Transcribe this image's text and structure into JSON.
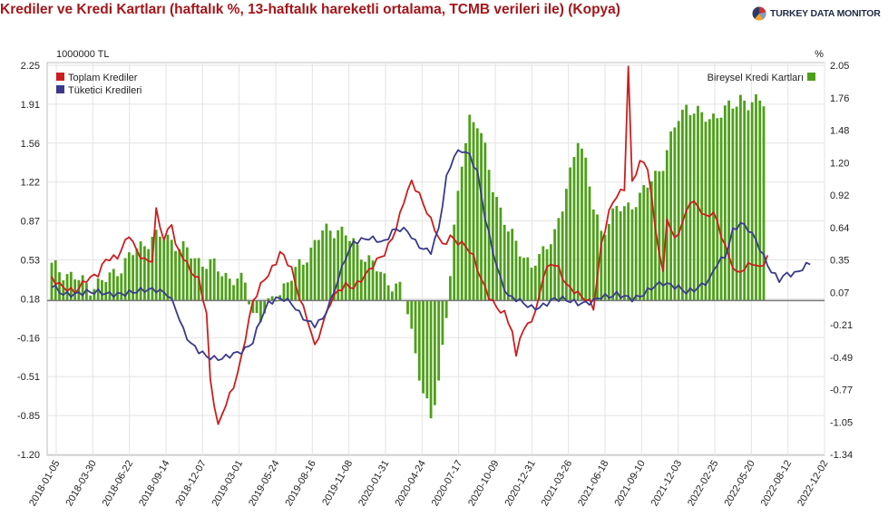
{
  "title": "Krediler ve Kredi Kartları (haftalık %, 13-haftalık hareketli ortalama, TCMB verileri ile) (Kopya)",
  "logo": {
    "text": "TURKEY DATA MONITOR",
    "icon": "pie-logo-icon"
  },
  "chart_data": {
    "type": "combo",
    "left_axis": {
      "unit": "1000000 TL",
      "ticks": [
        2.25,
        1.91,
        1.56,
        1.22,
        0.87,
        0.53,
        0.18,
        -0.16,
        -0.51,
        -0.85,
        -1.2
      ],
      "range": [
        -1.2,
        2.25
      ]
    },
    "right_axis": {
      "unit": "%",
      "ticks": [
        2.05,
        1.76,
        1.48,
        1.2,
        0.92,
        0.64,
        0.35,
        0.07,
        -0.21,
        -0.49,
        -0.77,
        -1.05,
        -1.34
      ],
      "range": [
        -1.34,
        2.05
      ]
    },
    "x_labels": [
      "2018-01-05",
      "2018-03-30",
      "2018-06-22",
      "2018-09-14",
      "2018-12-07",
      "2019-03-01",
      "2019-05-24",
      "2019-08-16",
      "2019-11-08",
      "2020-01-31",
      "2020-04-24",
      "2020-07-17",
      "2020-10-09",
      "2020-12-31",
      "2021-03-26",
      "2021-06-18",
      "2021-09-10",
      "2021-12-03",
      "2022-02-25",
      "2022-05-20",
      "2022-08-12",
      "2022-12-02"
    ],
    "grid": true,
    "zero_line_right_axis": 0,
    "legend_left": [
      {
        "name": "Toplam Krediler",
        "color": "#cc1e1e"
      },
      {
        "name": "Tüketici Kredileri",
        "color": "#3a3a8c"
      }
    ],
    "legend_right": [
      {
        "name": "Bireysel Kredi Kartları",
        "color": "#4ea019"
      }
    ],
    "series": [
      {
        "name": "Toplam Krediler",
        "axis": "left",
        "type": "line",
        "color": "#cc1e1e",
        "points": [
          [
            0,
            0.36
          ],
          [
            3,
            0.28
          ],
          [
            6,
            0.24
          ],
          [
            9,
            0.35
          ],
          [
            12,
            0.4
          ],
          [
            14,
            0.53
          ],
          [
            17,
            0.55
          ],
          [
            20,
            0.75
          ],
          [
            22,
            0.6
          ],
          [
            24,
            0.52
          ],
          [
            26,
            0.52
          ],
          [
            27,
            0.96
          ],
          [
            29,
            0.7
          ],
          [
            31,
            0.86
          ],
          [
            32,
            0.65
          ],
          [
            34,
            0.55
          ],
          [
            36,
            0.42
          ],
          [
            38,
            0.35
          ],
          [
            40,
            0.05
          ],
          [
            41,
            -0.55
          ],
          [
            42,
            -0.75
          ],
          [
            43,
            -0.95
          ],
          [
            45,
            -0.75
          ],
          [
            47,
            -0.6
          ],
          [
            49,
            -0.35
          ],
          [
            51,
            0.0
          ],
          [
            52,
            0.15
          ],
          [
            54,
            0.3
          ],
          [
            56,
            0.4
          ],
          [
            58,
            0.5
          ],
          [
            59,
            0.6
          ],
          [
            60,
            0.55
          ],
          [
            62,
            0.45
          ],
          [
            63,
            0.3
          ],
          [
            65,
            0.1
          ],
          [
            67,
            -0.1
          ],
          [
            68,
            -0.25
          ],
          [
            70,
            -0.05
          ],
          [
            72,
            0.15
          ],
          [
            74,
            0.25
          ],
          [
            76,
            0.3
          ],
          [
            78,
            0.28
          ],
          [
            80,
            0.35
          ],
          [
            82,
            0.43
          ],
          [
            84,
            0.52
          ],
          [
            86,
            0.58
          ],
          [
            87,
            0.65
          ],
          [
            89,
            0.8
          ],
          [
            91,
            1.05
          ],
          [
            93,
            1.22
          ],
          [
            95,
            1.1
          ],
          [
            97,
            0.95
          ],
          [
            99,
            0.8
          ],
          [
            101,
            0.65
          ],
          [
            103,
            0.73
          ],
          [
            105,
            0.68
          ],
          [
            107,
            0.65
          ],
          [
            109,
            0.55
          ],
          [
            111,
            0.35
          ],
          [
            113,
            0.2
          ],
          [
            115,
            0.1
          ],
          [
            117,
            0.05
          ],
          [
            119,
            -0.1
          ],
          [
            120,
            -0.35
          ],
          [
            121,
            -0.15
          ],
          [
            123,
            -0.05
          ],
          [
            125,
            0.05
          ],
          [
            127,
            0.38
          ],
          [
            129,
            0.5
          ],
          [
            131,
            0.45
          ],
          [
            133,
            0.3
          ],
          [
            135,
            0.25
          ],
          [
            137,
            0.2
          ],
          [
            139,
            0.15
          ],
          [
            140,
            0.1
          ],
          [
            142,
            0.65
          ],
          [
            144,
            0.95
          ],
          [
            146,
            1.1
          ],
          [
            148,
            1.15
          ],
          [
            149,
            2.25
          ],
          [
            150,
            1.2
          ],
          [
            152,
            1.4
          ],
          [
            154,
            1.35
          ],
          [
            156,
            0.8
          ],
          [
            158,
            0.4
          ],
          [
            159,
            0.9
          ],
          [
            161,
            0.7
          ],
          [
            163,
            0.85
          ],
          [
            165,
            1.05
          ],
          [
            167,
            1.0
          ],
          [
            169,
            0.9
          ],
          [
            171,
            0.95
          ],
          [
            173,
            0.75
          ],
          [
            175,
            0.55
          ],
          [
            177,
            0.4
          ],
          [
            179,
            0.45
          ],
          [
            181,
            0.5
          ],
          [
            183,
            0.45
          ],
          [
            185,
            0.55
          ]
        ]
      },
      {
        "name": "Tüketici Kredileri",
        "axis": "left",
        "type": "line",
        "color": "#3a3a8c",
        "points": [
          [
            0,
            0.3
          ],
          [
            3,
            0.22
          ],
          [
            6,
            0.22
          ],
          [
            9,
            0.24
          ],
          [
            12,
            0.24
          ],
          [
            15,
            0.22
          ],
          [
            18,
            0.22
          ],
          [
            21,
            0.24
          ],
          [
            24,
            0.26
          ],
          [
            27,
            0.26
          ],
          [
            30,
            0.22
          ],
          [
            32,
            0.1
          ],
          [
            34,
            -0.1
          ],
          [
            36,
            -0.22
          ],
          [
            38,
            -0.28
          ],
          [
            40,
            -0.33
          ],
          [
            42,
            -0.35
          ],
          [
            44,
            -0.35
          ],
          [
            46,
            -0.32
          ],
          [
            48,
            -0.3
          ],
          [
            50,
            -0.27
          ],
          [
            52,
            -0.2
          ],
          [
            54,
            0.0
          ],
          [
            56,
            0.14
          ],
          [
            58,
            0.18
          ],
          [
            60,
            0.18
          ],
          [
            62,
            0.14
          ],
          [
            64,
            0.05
          ],
          [
            66,
            -0.02
          ],
          [
            68,
            -0.05
          ],
          [
            70,
            0.0
          ],
          [
            72,
            0.15
          ],
          [
            74,
            0.35
          ],
          [
            76,
            0.55
          ],
          [
            78,
            0.68
          ],
          [
            80,
            0.7
          ],
          [
            82,
            0.72
          ],
          [
            84,
            0.7
          ],
          [
            86,
            0.68
          ],
          [
            88,
            0.78
          ],
          [
            90,
            0.8
          ],
          [
            92,
            0.78
          ],
          [
            94,
            0.68
          ],
          [
            96,
            0.62
          ],
          [
            98,
            0.6
          ],
          [
            100,
            0.8
          ],
          [
            102,
            1.25
          ],
          [
            104,
            1.45
          ],
          [
            106,
            1.5
          ],
          [
            108,
            1.45
          ],
          [
            110,
            1.3
          ],
          [
            112,
            0.9
          ],
          [
            114,
            0.6
          ],
          [
            116,
            0.35
          ],
          [
            118,
            0.2
          ],
          [
            120,
            0.18
          ],
          [
            122,
            0.14
          ],
          [
            124,
            0.1
          ],
          [
            126,
            0.1
          ],
          [
            128,
            0.14
          ],
          [
            130,
            0.18
          ],
          [
            132,
            0.18
          ],
          [
            134,
            0.16
          ],
          [
            136,
            0.14
          ],
          [
            138,
            0.14
          ],
          [
            140,
            0.16
          ],
          [
            142,
            0.2
          ],
          [
            144,
            0.2
          ],
          [
            146,
            0.22
          ],
          [
            148,
            0.2
          ],
          [
            150,
            0.18
          ],
          [
            152,
            0.2
          ],
          [
            154,
            0.25
          ],
          [
            156,
            0.3
          ],
          [
            158,
            0.32
          ],
          [
            160,
            0.3
          ],
          [
            162,
            0.28
          ],
          [
            164,
            0.24
          ],
          [
            166,
            0.26
          ],
          [
            168,
            0.3
          ],
          [
            170,
            0.35
          ],
          [
            172,
            0.5
          ],
          [
            174,
            0.55
          ],
          [
            176,
            0.78
          ],
          [
            178,
            0.85
          ],
          [
            180,
            0.8
          ],
          [
            182,
            0.7
          ],
          [
            184,
            0.55
          ],
          [
            186,
            0.42
          ],
          [
            188,
            0.35
          ],
          [
            190,
            0.4
          ],
          [
            192,
            0.4
          ],
          [
            194,
            0.45
          ],
          [
            196,
            0.5
          ]
        ]
      },
      {
        "name": "Bireysel Kredi Kartları",
        "axis": "right",
        "type": "bar",
        "color": "#4ea019",
        "points": [
          [
            0,
            0.3
          ],
          [
            6,
            0.2
          ],
          [
            10,
            0.12
          ],
          [
            14,
            0.18
          ],
          [
            18,
            0.3
          ],
          [
            22,
            0.45
          ],
          [
            26,
            0.55
          ],
          [
            30,
            0.55
          ],
          [
            34,
            0.45
          ],
          [
            38,
            0.35
          ],
          [
            42,
            0.3
          ],
          [
            46,
            0.2
          ],
          [
            50,
            0.15
          ],
          [
            52,
            -0.1
          ],
          [
            54,
            -0.15
          ],
          [
            56,
            -0.05
          ],
          [
            58,
            0.05
          ],
          [
            62,
            0.2
          ],
          [
            66,
            0.4
          ],
          [
            70,
            0.6
          ],
          [
            74,
            0.63
          ],
          [
            78,
            0.5
          ],
          [
            82,
            0.35
          ],
          [
            86,
            0.2
          ],
          [
            90,
            0.1
          ],
          [
            92,
            -0.1
          ],
          [
            94,
            -0.45
          ],
          [
            96,
            -0.8
          ],
          [
            98,
            -1.05
          ],
          [
            100,
            -0.7
          ],
          [
            102,
            -0.1
          ],
          [
            104,
            0.6
          ],
          [
            106,
            1.2
          ],
          [
            108,
            1.6
          ],
          [
            110,
            1.55
          ],
          [
            112,
            1.3
          ],
          [
            114,
            1.0
          ],
          [
            116,
            0.8
          ],
          [
            118,
            0.6
          ],
          [
            120,
            0.5
          ],
          [
            122,
            0.4
          ],
          [
            124,
            0.3
          ],
          [
            126,
            0.35
          ],
          [
            128,
            0.5
          ],
          [
            130,
            0.6
          ],
          [
            132,
            0.8
          ],
          [
            134,
            1.1
          ],
          [
            136,
            1.45
          ],
          [
            138,
            1.2
          ],
          [
            140,
            0.8
          ],
          [
            142,
            0.6
          ],
          [
            144,
            0.7
          ],
          [
            146,
            0.8
          ],
          [
            148,
            0.8
          ],
          [
            150,
            0.85
          ],
          [
            152,
            0.9
          ],
          [
            154,
            1.0
          ],
          [
            156,
            1.1
          ],
          [
            158,
            1.2
          ],
          [
            160,
            1.4
          ],
          [
            162,
            1.6
          ],
          [
            164,
            1.7
          ],
          [
            166,
            1.65
          ],
          [
            168,
            1.6
          ],
          [
            170,
            1.6
          ],
          [
            172,
            1.62
          ],
          [
            174,
            1.65
          ],
          [
            176,
            1.7
          ],
          [
            178,
            1.78
          ],
          [
            180,
            1.7
          ],
          [
            182,
            1.72
          ],
          [
            184,
            1.76
          ]
        ]
      }
    ]
  }
}
